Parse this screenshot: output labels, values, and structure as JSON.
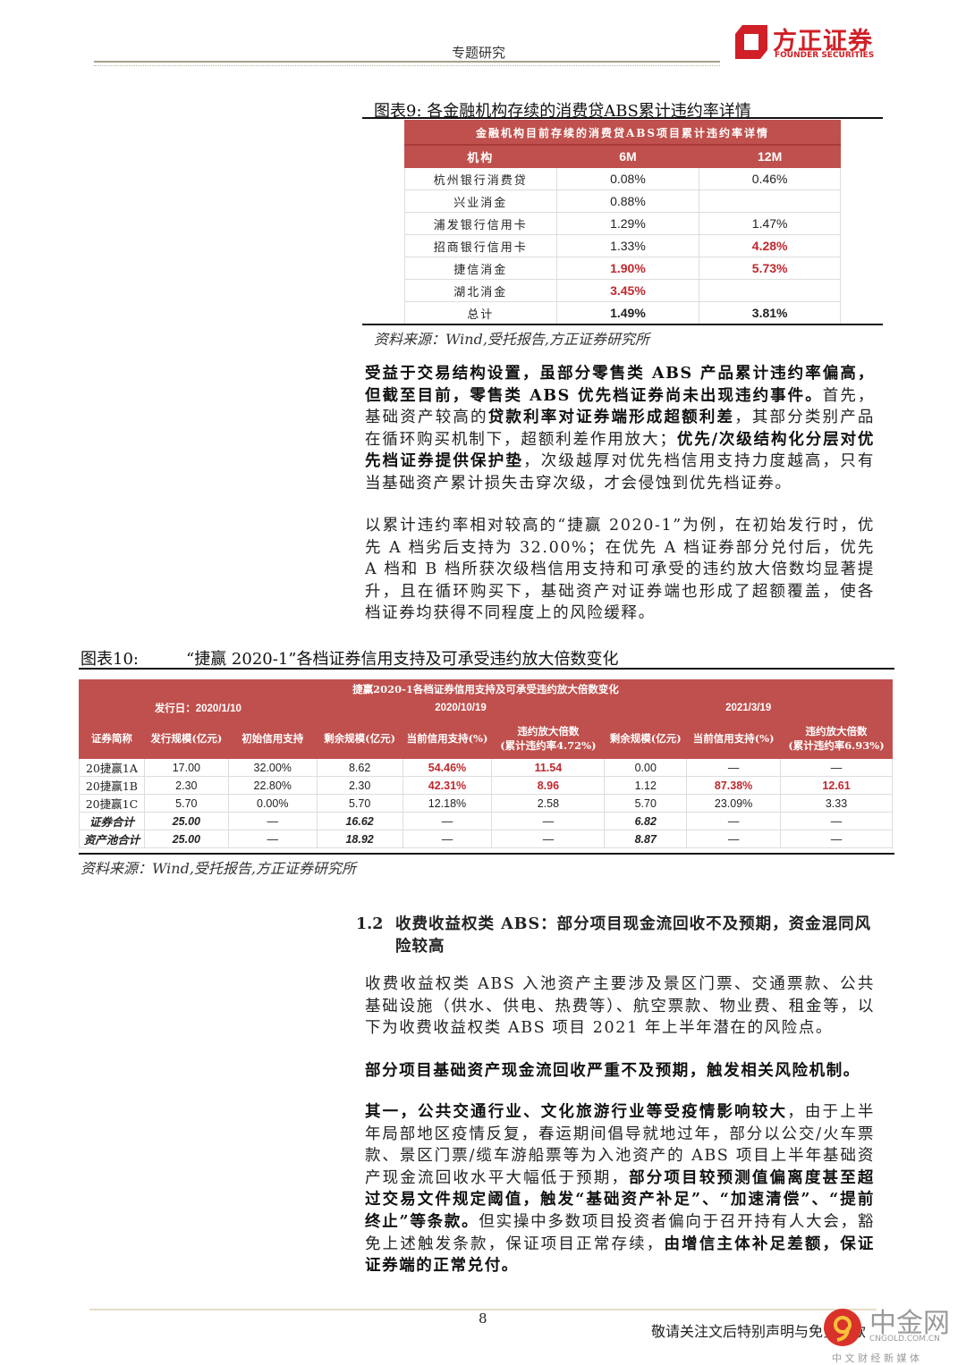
{
  "header": {
    "section": "专题研究",
    "logo_cn": "方正证券",
    "logo_en": "FOUNDER SECURITIES",
    "brand_color": "#d01f26"
  },
  "fig9": {
    "caption": "图表9:   各金融机构存续的消费贷ABS累计违约率详情",
    "table_title": "金融机构目前存续的消费贷ABS项目累计违约率详情",
    "columns": [
      "机构",
      "6M",
      "12M"
    ],
    "rows": [
      {
        "name": "杭州银行消费贷",
        "m6": "0.08%",
        "m12": "0.46%",
        "h6": false,
        "h12": false
      },
      {
        "name": "兴业消金",
        "m6": "0.88%",
        "m12": "",
        "h6": false,
        "h12": false
      },
      {
        "name": "浦发银行信用卡",
        "m6": "1.29%",
        "m12": "1.47%",
        "h6": false,
        "h12": false
      },
      {
        "name": "招商银行信用卡",
        "m6": "1.33%",
        "m12": "4.28%",
        "h6": false,
        "h12": true
      },
      {
        "name": "捷信消金",
        "m6": "1.90%",
        "m12": "5.73%",
        "h6": true,
        "h12": true
      },
      {
        "name": "湖北消金",
        "m6": "3.45%",
        "m12": "",
        "h6": true,
        "h12": false
      },
      {
        "name": "总计",
        "m6": "1.49%",
        "m12": "3.81%",
        "h6": false,
        "h12": false,
        "bold": true
      }
    ],
    "source": "资料来源：Wind,受托报告,方正证券研究所",
    "header_color": "#c0504d",
    "highlight_color": "#c0282d"
  },
  "para1": [
    {
      "t": "受益于交易结构设置，虽部分零售类 ABS 产品累计违约率偏高，但截至目前，零售类 ABS 优先档证券尚未出现违约事件。",
      "b": true
    },
    {
      "t": "首先，基础资产较高的",
      "b": false
    },
    {
      "t": "贷款利率对证券端形成超额利差",
      "b": true
    },
    {
      "t": "，其部分类别产品在循环购买机制下，超额利差作用放大；",
      "b": false
    },
    {
      "t": "优先/次级结构化分层对优先档证券提供保护垫",
      "b": true
    },
    {
      "t": "，次级越厚对优先档信用支持力度越高，只有当基础资产累计损失击穿次级，才会侵蚀到优先档证券。",
      "b": false
    }
  ],
  "para2": [
    {
      "t": "以累计违约率相对较高的“捷赢 2020-1”为例，在初始发行时，优先 A 档劣后支持为 32.00%；在优先 A 档证券部分兑付后，优先 A 档和 B 档所获次级档信用支持和可承受的违约放大倍数均显著提升，且在循环购买下，基础资产对证券端也形成了超额覆盖，使各档证券均获得不同程度上的风险缓释。",
      "b": false
    }
  ],
  "fig10": {
    "caption_label": "图表10:",
    "caption_title": "“捷赢 2020-1”各档证券信用支持及可承受违约放大倍数变化",
    "table_title": "捷赢2020-1各档证券信用支持及可承受违约放大倍数变化",
    "group_issue": "发行日：2020/1/10",
    "group_d1": "2020/10/19",
    "group_d2": "2021/3/19",
    "columns": [
      "证券简称",
      "发行规模(亿元)",
      "初始信用支持",
      "剩余规模(亿元)",
      "当前信用支持(%)",
      "违约放大倍数\n(累计违约率4.72%)",
      "剩余规模(亿元)",
      "当前信用支持(%)",
      "违约放大倍数\n(累计违约率6.93%)"
    ],
    "col_a": "违约放大倍数",
    "col_a2": "(累计违约率4.72%)",
    "col_b": "违约放大倍数",
    "col_b2": "(累计违约率6.93%)",
    "rows": [
      {
        "c": [
          "20捷赢1A",
          "17.00",
          "32.00%",
          "8.62",
          "54.46%",
          "11.54",
          "0.00",
          "—",
          "—"
        ],
        "hl": [
          4,
          5
        ]
      },
      {
        "c": [
          "20捷赢1B",
          "2.30",
          "22.80%",
          "2.30",
          "42.31%",
          "8.96",
          "1.12",
          "87.38%",
          "12.61"
        ],
        "hl": [
          4,
          5,
          7,
          8
        ]
      },
      {
        "c": [
          "20捷赢1C",
          "5.70",
          "0.00%",
          "5.70",
          "12.18%",
          "2.58",
          "5.70",
          "23.09%",
          "3.33"
        ],
        "hl": []
      },
      {
        "c": [
          "证券合计",
          "25.00",
          "—",
          "16.62",
          "—",
          "—",
          "6.82",
          "—",
          "—"
        ],
        "hl": [],
        "total": true
      },
      {
        "c": [
          "资产池合计",
          "25.00",
          "—",
          "18.92",
          "—",
          "—",
          "8.87",
          "—",
          "—"
        ],
        "hl": [],
        "total": true
      }
    ],
    "source": "资料来源：Wind,受托报告,方正证券研究所"
  },
  "section": {
    "number": "1.2",
    "title": "收费收益权类 ABS：部分项目现金流回收不及预期，资金混同风险较高"
  },
  "para3": [
    {
      "t": "收费收益权类 ABS 入池资产主要涉及景区门票、交通票款、公共基础设施（供水、供电、热费等）、航空票款、物业费、租金等，以下为收费收益权类 ABS 项目 2021 年上半年潜在的风险点。",
      "b": false
    }
  ],
  "para4": [
    {
      "t": "部分项目基础资产现金流回收严重不及预期，触发相关风险机制。",
      "b": true
    }
  ],
  "para5": [
    {
      "t": "其一，公共交通行业、文化旅游行业等受疫情影响较大",
      "b": true
    },
    {
      "t": "，由于上半年局部地区疫情反复，春运期间倡导就地过年，部分以公交/火车票款、景区门票/缆车游船票等为入池资产的 ABS 项目上半年基础资产现金流回收水平大幅低于预期，",
      "b": false
    },
    {
      "t": "部分项目较预测值偏离度甚至超过交易文件规定阈值，触发“基础资产补足”、“加速清偿”、“提前终止”等条款。",
      "b": true
    },
    {
      "t": "但实操中多数项目投资者偏向于召开持有人大会，豁免上述触发条款，保证项目正常存续，",
      "b": false
    },
    {
      "t": "由增信主体补足差额，保证证券端的正常兑付。",
      "b": true
    }
  ],
  "footer": {
    "page": "8",
    "notice": "敬请关注文后特别声明与免责条款"
  },
  "watermark": {
    "name": "中金网",
    "domain": "CNGOLD.COM.CN",
    "tagline": "中 文 财 经 新 媒 体"
  }
}
